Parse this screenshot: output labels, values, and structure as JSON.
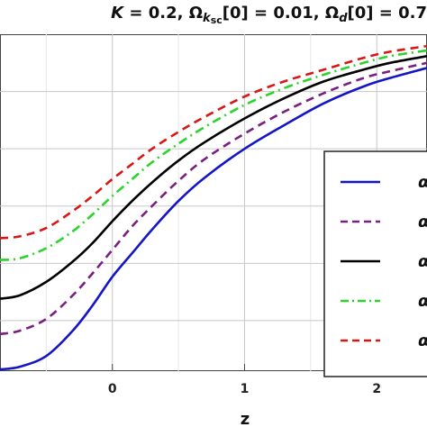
{
  "title": {
    "parts": [
      {
        "t": "K",
        "it": true
      },
      {
        "t": " = 0.2, ",
        "it": false
      },
      {
        "t": "Ω",
        "it": false
      },
      {
        "t": "k",
        "it": true,
        "sub": true
      },
      {
        "t": "sc",
        "it": false,
        "sub": true,
        "subsub": true
      },
      {
        "t": "[0] = 0.01, ",
        "it": false
      },
      {
        "t": "Ω",
        "it": false
      },
      {
        "t": "d",
        "it": true,
        "sub": true
      },
      {
        "t": "[0] = 0.7",
        "it": false
      }
    ]
  },
  "chart_data": {
    "type": "line",
    "title": "K = 0.2, Ω_ksc[0] = 0.01, Ω_d[0] = 0.7",
    "xlabel": "z",
    "ylabel": "",
    "xlim": [
      -0.85,
      2.38
    ],
    "ylim": [
      0,
      1
    ],
    "xticks": [
      0,
      1,
      2
    ],
    "xtick_labels": [
      "0",
      "1",
      "2"
    ],
    "grid": true,
    "legend_position": "right",
    "series": [
      {
        "name": "α",
        "color": "#1515c8",
        "dash": "solid",
        "x": [
          -0.85,
          -0.7,
          -0.5,
          -0.3,
          -0.15,
          0,
          0.15,
          0.3,
          0.5,
          0.7,
          1.0,
          1.3,
          1.6,
          1.9,
          2.1,
          2.38
        ],
        "y": [
          0.005,
          0.013,
          0.045,
          0.12,
          0.195,
          0.28,
          0.35,
          0.42,
          0.505,
          0.575,
          0.66,
          0.73,
          0.795,
          0.845,
          0.87,
          0.9
        ]
      },
      {
        "name": "α",
        "color": "#7a1e82",
        "dash": "dashed",
        "x": [
          -0.85,
          -0.7,
          -0.5,
          -0.3,
          -0.15,
          0,
          0.15,
          0.3,
          0.5,
          0.7,
          1.0,
          1.3,
          1.6,
          1.9,
          2.1,
          2.38
        ],
        "y": [
          0.11,
          0.12,
          0.155,
          0.225,
          0.29,
          0.36,
          0.43,
          0.49,
          0.565,
          0.63,
          0.705,
          0.77,
          0.825,
          0.87,
          0.89,
          0.915
        ]
      },
      {
        "name": "α",
        "color": "#000000",
        "dash": "solid",
        "x": [
          -0.85,
          -0.7,
          -0.5,
          -0.3,
          -0.15,
          0,
          0.15,
          0.3,
          0.5,
          0.7,
          1.0,
          1.3,
          1.6,
          1.9,
          2.1,
          2.38
        ],
        "y": [
          0.215,
          0.225,
          0.265,
          0.325,
          0.38,
          0.445,
          0.505,
          0.56,
          0.625,
          0.68,
          0.75,
          0.81,
          0.86,
          0.895,
          0.915,
          0.935
        ]
      },
      {
        "name": "α",
        "color": "#2bd32b",
        "dash": "dashdot",
        "x": [
          -0.85,
          -0.7,
          -0.5,
          -0.3,
          -0.15,
          0,
          0.15,
          0.3,
          0.5,
          0.7,
          1.0,
          1.3,
          1.6,
          1.9,
          2.1,
          2.38
        ],
        "y": [
          0.33,
          0.335,
          0.365,
          0.415,
          0.465,
          0.52,
          0.57,
          0.62,
          0.675,
          0.725,
          0.79,
          0.84,
          0.88,
          0.915,
          0.935,
          0.952
        ]
      },
      {
        "name": "α",
        "color": "#d91616",
        "dash": "dashed",
        "x": [
          -0.85,
          -0.7,
          -0.5,
          -0.3,
          -0.15,
          0,
          0.15,
          0.3,
          0.5,
          0.7,
          1.0,
          1.3,
          1.6,
          1.9,
          2.1,
          2.38
        ],
        "y": [
          0.395,
          0.4,
          0.425,
          0.475,
          0.52,
          0.57,
          0.615,
          0.66,
          0.71,
          0.755,
          0.815,
          0.86,
          0.895,
          0.93,
          0.948,
          0.965
        ]
      }
    ]
  }
}
